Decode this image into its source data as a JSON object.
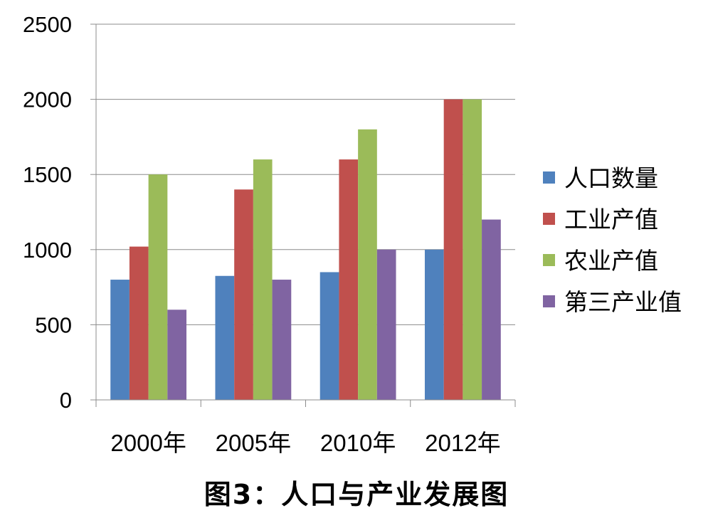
{
  "caption": "图3：人口与产业发展图",
  "chart_data": {
    "type": "bar",
    "title": "",
    "xlabel": "",
    "ylabel": "",
    "categories": [
      "2000年",
      "2005年",
      "2010年",
      "2012年"
    ],
    "ylim": [
      0,
      2500
    ],
    "yticks": [
      0,
      500,
      1000,
      1500,
      2000,
      2500
    ],
    "grid": true,
    "legend_position": "right",
    "series": [
      {
        "name": "人口数量",
        "color": "#4F81BD",
        "values": [
          800,
          825,
          850,
          1000
        ]
      },
      {
        "name": "工业产值",
        "color": "#C0504D",
        "values": [
          1020,
          1400,
          1600,
          2000
        ]
      },
      {
        "name": "农业产值",
        "color": "#9BBB59",
        "values": [
          1500,
          1600,
          1800,
          2000
        ]
      },
      {
        "name": "第三产业值",
        "color": "#8064A2",
        "values": [
          600,
          800,
          1000,
          1200
        ]
      }
    ]
  }
}
